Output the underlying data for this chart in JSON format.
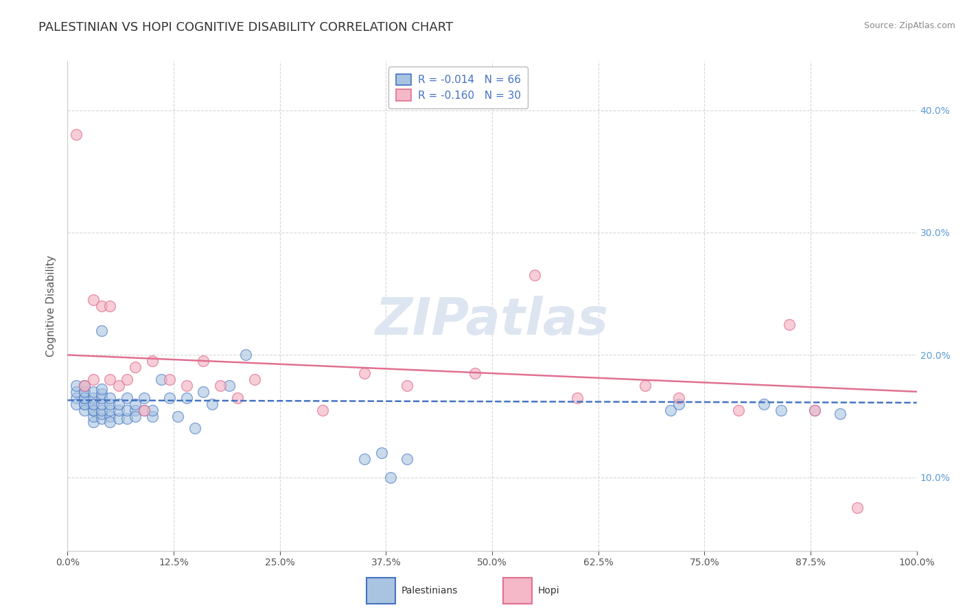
{
  "title": "PALESTINIAN VS HOPI COGNITIVE DISABILITY CORRELATION CHART",
  "source": "Source: ZipAtlas.com",
  "ylabel": "Cognitive Disability",
  "xmin": 0.0,
  "xmax": 1.0,
  "ymin": 0.04,
  "ymax": 0.44,
  "yticks": [
    0.1,
    0.2,
    0.3,
    0.4
  ],
  "xticks": [
    0.0,
    0.125,
    0.25,
    0.375,
    0.5,
    0.625,
    0.75,
    0.875,
    1.0
  ],
  "title_color": "#333333",
  "source_color": "#888888",
  "axis_label_color": "#555555",
  "tick_color_right": "#5b9bd5",
  "tick_color_x": "#555555",
  "grid_color": "#cccccc",
  "background_color": "#ffffff",
  "watermark": "ZIPatlas",
  "watermark_color": "#dde6f0",
  "legend_R1": "R = -0.014",
  "legend_N1": "N = 66",
  "legend_R2": "R = -0.160",
  "legend_N2": "N = 30",
  "legend_color": "#4472c4",
  "blue_color_fill": "#a8c4e0",
  "blue_color_edge": "#4472c4",
  "pink_color_fill": "#f4b8c8",
  "pink_color_edge": "#e07090",
  "blue_trend_color": "#4472c4",
  "pink_trend_color": "#e07090",
  "blue_scatter_x": [
    0.01,
    0.01,
    0.01,
    0.01,
    0.02,
    0.02,
    0.02,
    0.02,
    0.02,
    0.02,
    0.02,
    0.02,
    0.02,
    0.03,
    0.03,
    0.03,
    0.03,
    0.03,
    0.03,
    0.03,
    0.03,
    0.04,
    0.04,
    0.04,
    0.04,
    0.04,
    0.04,
    0.04,
    0.05,
    0.05,
    0.05,
    0.05,
    0.05,
    0.06,
    0.06,
    0.06,
    0.07,
    0.07,
    0.07,
    0.08,
    0.08,
    0.08,
    0.09,
    0.09,
    0.1,
    0.1,
    0.11,
    0.12,
    0.13,
    0.14,
    0.15,
    0.16,
    0.17,
    0.19,
    0.21,
    0.04,
    0.35,
    0.37,
    0.38,
    0.4,
    0.71,
    0.72,
    0.82,
    0.84,
    0.88,
    0.91
  ],
  "blue_scatter_y": [
    0.165,
    0.17,
    0.175,
    0.16,
    0.16,
    0.165,
    0.17,
    0.175,
    0.155,
    0.16,
    0.165,
    0.17,
    0.175,
    0.145,
    0.15,
    0.155,
    0.16,
    0.165,
    0.155,
    0.16,
    0.17,
    0.148,
    0.152,
    0.155,
    0.16,
    0.165,
    0.168,
    0.172,
    0.15,
    0.155,
    0.16,
    0.165,
    0.145,
    0.148,
    0.155,
    0.16,
    0.148,
    0.155,
    0.165,
    0.155,
    0.16,
    0.15,
    0.165,
    0.155,
    0.15,
    0.155,
    0.18,
    0.165,
    0.15,
    0.165,
    0.14,
    0.17,
    0.16,
    0.175,
    0.2,
    0.22,
    0.115,
    0.12,
    0.1,
    0.115,
    0.155,
    0.16,
    0.16,
    0.155,
    0.155,
    0.152
  ],
  "pink_scatter_x": [
    0.01,
    0.02,
    0.03,
    0.03,
    0.04,
    0.05,
    0.05,
    0.06,
    0.07,
    0.08,
    0.09,
    0.1,
    0.12,
    0.14,
    0.16,
    0.18,
    0.2,
    0.22,
    0.3,
    0.35,
    0.4,
    0.48,
    0.55,
    0.6,
    0.68,
    0.72,
    0.79,
    0.85,
    0.88,
    0.93
  ],
  "pink_scatter_y": [
    0.38,
    0.175,
    0.18,
    0.245,
    0.24,
    0.24,
    0.18,
    0.175,
    0.18,
    0.19,
    0.155,
    0.195,
    0.18,
    0.175,
    0.195,
    0.175,
    0.165,
    0.18,
    0.155,
    0.185,
    0.175,
    0.185,
    0.265,
    0.165,
    0.175,
    0.165,
    0.155,
    0.225,
    0.155,
    0.075
  ],
  "blue_trend_x": [
    0.0,
    1.0
  ],
  "blue_trend_y": [
    0.163,
    0.161
  ],
  "pink_trend_x": [
    0.0,
    1.0
  ],
  "pink_trend_y": [
    0.2,
    0.17
  ],
  "title_fontsize": 13,
  "axis_label_fontsize": 11,
  "tick_fontsize": 10,
  "legend_fontsize": 11,
  "source_fontsize": 9,
  "watermark_fontsize": 54
}
